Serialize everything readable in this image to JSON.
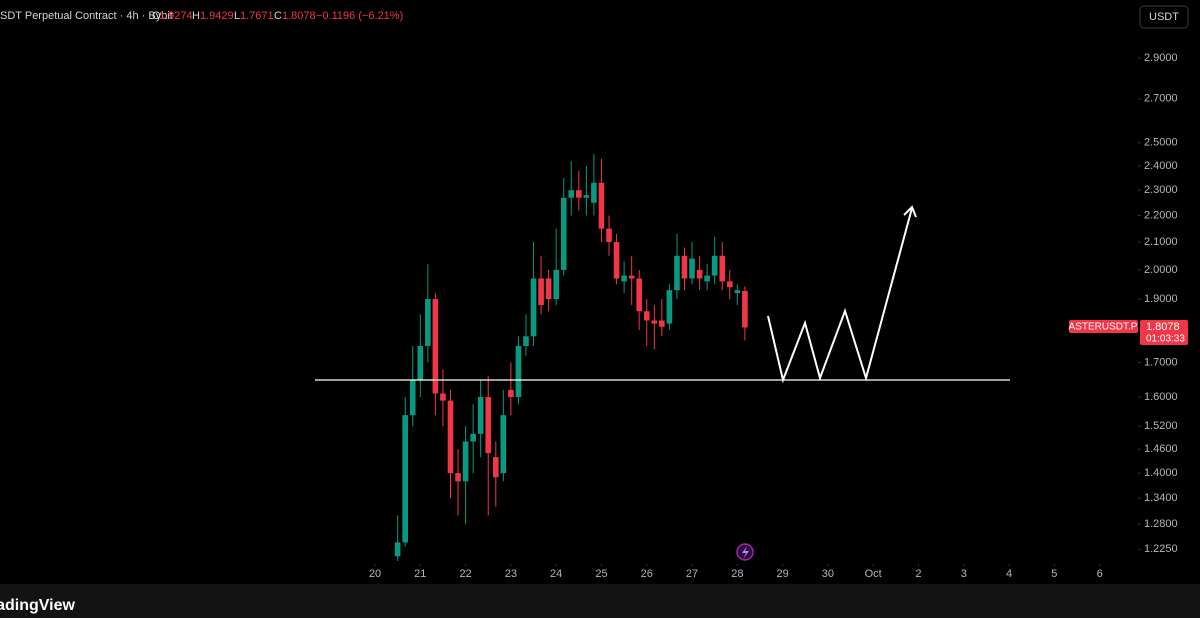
{
  "chart_data": {
    "type": "candlestick",
    "symbol": "SDT Perpetual Contract · 4h · Bybit",
    "ohlc_letters": [
      "O",
      "H",
      "L",
      "C"
    ],
    "change": "−0.1196 (−6.21%)",
    "currency": "USDT",
    "price_tag": "ASTERUSDT.P",
    "countdown": "01:03:33",
    "brand": "TradingView",
    "yscale": "log",
    "up_color": "#089981",
    "down_color": "#f23645",
    "ylim": [
      1.2,
      3.2
    ],
    "yticks": [
      {
        "value": 1.225,
        "label": "1.2250"
      },
      {
        "value": 1.28,
        "label": "1.2800"
      },
      {
        "value": 1.34,
        "label": "1.3400"
      },
      {
        "value": 1.4,
        "label": "1.4000"
      },
      {
        "value": 1.46,
        "label": "1.4600"
      },
      {
        "value": 1.52,
        "label": "1.5200"
      },
      {
        "value": 1.6,
        "label": "1.6000"
      },
      {
        "value": 1.7,
        "label": "1.7000"
      },
      {
        "value": 1.9,
        "label": "1.9000"
      },
      {
        "value": 2.0,
        "label": "2.0000"
      },
      {
        "value": 2.1,
        "label": "2.1000"
      },
      {
        "value": 2.2,
        "label": "2.2000"
      },
      {
        "value": 2.3,
        "label": "2.3000"
      },
      {
        "value": 2.4,
        "label": "2.4000"
      },
      {
        "value": 2.5,
        "label": "2.5000"
      },
      {
        "value": 2.7,
        "label": "2.7000"
      },
      {
        "value": 2.9,
        "label": "2.9000"
      }
    ],
    "xlim": [
      11.72,
      36.67
    ],
    "xticks": [
      20,
      21,
      22,
      23,
      24,
      25,
      26,
      27,
      28,
      29,
      30,
      {
        "value": 31,
        "label": "Oct"
      },
      {
        "value": 32,
        "label": "2"
      },
      {
        "value": 33,
        "label": "3"
      },
      {
        "value": 34,
        "label": "4"
      },
      {
        "value": 35,
        "label": "5"
      },
      {
        "value": 36,
        "label": "6"
      }
    ],
    "x": [
      20.5,
      20.667,
      20.833,
      21.0,
      21.167,
      21.333,
      21.5,
      21.667,
      21.833,
      22.0,
      22.167,
      22.333,
      22.5,
      22.667,
      22.833,
      23.0,
      23.167,
      23.333,
      23.5,
      23.667,
      23.833,
      24.0,
      24.167,
      24.333,
      24.5,
      24.667,
      24.833,
      25.0,
      25.167,
      25.333,
      25.5,
      25.667,
      25.833,
      26.0,
      26.167,
      26.333,
      26.5,
      26.667,
      26.833,
      27.0,
      27.167,
      27.333,
      27.5,
      27.667,
      27.833,
      28.0,
      28.167
    ],
    "open": [
      1.21,
      1.24,
      1.55,
      1.65,
      1.75,
      1.9,
      1.61,
      1.59,
      1.4,
      1.38,
      1.48,
      1.5,
      1.6,
      1.44,
      1.4,
      1.62,
      1.6,
      1.75,
      1.78,
      1.97,
      1.97,
      1.9,
      2.0,
      2.27,
      2.3,
      2.27,
      2.25,
      2.33,
      2.15,
      2.1,
      1.96,
      1.98,
      1.97,
      1.86,
      1.83,
      1.83,
      1.82,
      1.93,
      2.05,
      1.97,
      2.0,
      1.96,
      1.98,
      2.05,
      1.96,
      1.92,
      1.9274
    ],
    "high": [
      1.3,
      1.6,
      1.75,
      1.85,
      2.02,
      1.92,
      1.68,
      1.62,
      1.46,
      1.52,
      1.58,
      1.65,
      1.66,
      1.48,
      1.62,
      1.7,
      1.78,
      1.85,
      2.1,
      2.05,
      2.0,
      2.15,
      2.35,
      2.42,
      2.38,
      2.4,
      2.45,
      2.43,
      2.2,
      2.13,
      2.03,
      2.05,
      2.0,
      1.9,
      1.88,
      1.9,
      1.95,
      2.13,
      2.08,
      2.1,
      2.05,
      2.02,
      2.12,
      2.1,
      2.0,
      1.95,
      1.9429
    ],
    "low": [
      1.2,
      1.23,
      1.52,
      1.6,
      1.7,
      1.55,
      1.52,
      1.34,
      1.3,
      1.28,
      1.4,
      1.44,
      1.3,
      1.32,
      1.38,
      1.55,
      1.58,
      1.72,
      1.75,
      1.85,
      1.86,
      1.88,
      1.98,
      2.2,
      2.22,
      2.2,
      2.2,
      2.1,
      2.05,
      1.95,
      1.92,
      1.88,
      1.8,
      1.75,
      1.74,
      1.78,
      1.8,
      1.9,
      1.93,
      1.95,
      1.93,
      1.93,
      1.95,
      1.93,
      1.9,
      1.88,
      1.7671
    ],
    "close": [
      1.24,
      1.55,
      1.65,
      1.75,
      1.9,
      1.61,
      1.59,
      1.4,
      1.38,
      1.48,
      1.5,
      1.6,
      1.45,
      1.39,
      1.55,
      1.6,
      1.75,
      1.78,
      1.97,
      1.88,
      1.9,
      2.0,
      2.27,
      2.3,
      2.27,
      2.28,
      2.33,
      2.15,
      2.1,
      1.97,
      1.98,
      1.97,
      1.86,
      1.83,
      1.82,
      1.81,
      1.93,
      2.05,
      1.97,
      2.04,
      1.97,
      1.98,
      2.05,
      1.96,
      1.94,
      1.93,
      1.8078
    ]
  }
}
